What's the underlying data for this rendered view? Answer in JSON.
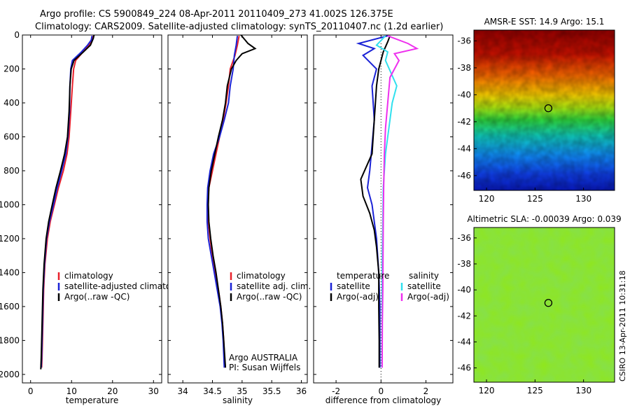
{
  "header": {
    "line1": "Argo profile: CS 5900849_224 08-Apr-2011 20110409_273 41.002S 126.375E",
    "line2": "Climatology: CARS2009. Satellite-adjusted climatology: synTS_20110407.nc (1.2d earlier)"
  },
  "side_label": "CSIRO 13-Apr-2011 10:31:18",
  "colors": {
    "climatology": "#e8202a",
    "satellite": "#1a22d6",
    "argo": "#000000",
    "sal_sat": "#30e0ee",
    "sal_argo": "#ee30ee"
  },
  "chart_data": [
    {
      "type": "line",
      "xlabel": "temperature",
      "xticks": [
        "0",
        "10",
        "20",
        "30"
      ],
      "xlim": [
        -2,
        32
      ],
      "ylim": [
        2050,
        0
      ],
      "yticks": [
        "0",
        "200",
        "400",
        "600",
        "800",
        "1000",
        "1200",
        "1400",
        "1600",
        "1800",
        "2000"
      ],
      "legend": {
        "placement": "bottom-right",
        "entries": [
          "climatology",
          "satellite-adjusted climatology",
          "Argo(..raw -QC)"
        ]
      },
      "series": [
        {
          "key": "climatology",
          "color": "#e8202a",
          "points": [
            [
              15.3,
              5
            ],
            [
              15.0,
              30
            ],
            [
              14.2,
              60
            ],
            [
              12.8,
              100
            ],
            [
              11.0,
              150
            ],
            [
              10.5,
              200
            ],
            [
              10.2,
              300
            ],
            [
              9.8,
              450
            ],
            [
              9.4,
              600
            ],
            [
              8.9,
              700
            ],
            [
              8.0,
              800
            ],
            [
              6.8,
              900
            ],
            [
              5.8,
              1000
            ],
            [
              4.8,
              1100
            ],
            [
              4.1,
              1200
            ],
            [
              3.5,
              1350
            ],
            [
              3.2,
              1500
            ],
            [
              3.0,
              1700
            ],
            [
              2.8,
              1900
            ],
            [
              2.7,
              1960
            ]
          ]
        },
        {
          "key": "satellite",
          "color": "#1a22d6",
          "points": [
            [
              15.0,
              5
            ],
            [
              14.8,
              30
            ],
            [
              13.9,
              60
            ],
            [
              12.4,
              100
            ],
            [
              10.2,
              150
            ],
            [
              9.8,
              200
            ],
            [
              9.6,
              300
            ],
            [
              9.5,
              450
            ],
            [
              9.1,
              600
            ],
            [
              8.6,
              700
            ],
            [
              7.6,
              800
            ],
            [
              6.5,
              900
            ],
            [
              5.6,
              1000
            ],
            [
              4.6,
              1100
            ],
            [
              3.9,
              1200
            ],
            [
              3.4,
              1350
            ],
            [
              3.1,
              1500
            ],
            [
              2.9,
              1700
            ],
            [
              2.7,
              1900
            ],
            [
              2.6,
              1960
            ]
          ]
        },
        {
          "key": "argo",
          "color": "#000000",
          "points": [
            [
              15.5,
              0
            ],
            [
              15.3,
              20
            ],
            [
              14.6,
              60
            ],
            [
              12.9,
              100
            ],
            [
              10.6,
              150
            ],
            [
              9.9,
              200
            ],
            [
              9.6,
              300
            ],
            [
              9.4,
              450
            ],
            [
              9.0,
              600
            ],
            [
              8.3,
              700
            ],
            [
              7.3,
              800
            ],
            [
              6.2,
              900
            ],
            [
              5.3,
              1000
            ],
            [
              4.4,
              1100
            ],
            [
              3.8,
              1200
            ],
            [
              3.3,
              1350
            ],
            [
              3.0,
              1500
            ],
            [
              2.8,
              1700
            ],
            [
              2.6,
              1900
            ],
            [
              2.5,
              1970
            ]
          ]
        }
      ]
    },
    {
      "type": "line",
      "xlabel": "salinity",
      "xticks": [
        "34",
        "34.5",
        "35",
        "35.5",
        "36"
      ],
      "xlim": [
        33.75,
        36.1
      ],
      "ylim": [
        2050,
        0
      ],
      "legend": {
        "placement": "bottom-right",
        "entries": [
          "climatology",
          "satellite adj. clim.",
          "Argo(..raw -QC)"
        ]
      },
      "annotation": [
        "Argo AUSTRALIA",
        "PI: Susan Wijffels"
      ],
      "series": [
        {
          "key": "climatology",
          "color": "#e8202a",
          "points": [
            [
              34.95,
              5
            ],
            [
              34.92,
              60
            ],
            [
              34.88,
              120
            ],
            [
              34.8,
              200
            ],
            [
              34.77,
              300
            ],
            [
              34.73,
              400
            ],
            [
              34.68,
              500
            ],
            [
              34.62,
              600
            ],
            [
              34.56,
              700
            ],
            [
              34.5,
              800
            ],
            [
              34.44,
              900
            ],
            [
              34.42,
              1000
            ],
            [
              34.43,
              1100
            ],
            [
              34.46,
              1200
            ],
            [
              34.5,
              1300
            ],
            [
              34.55,
              1400
            ],
            [
              34.6,
              1500
            ],
            [
              34.64,
              1600
            ],
            [
              34.67,
              1700
            ],
            [
              34.69,
              1800
            ],
            [
              34.71,
              1960
            ]
          ]
        },
        {
          "key": "satellite",
          "color": "#1a22d6",
          "points": [
            [
              34.92,
              5
            ],
            [
              34.9,
              60
            ],
            [
              34.87,
              120
            ],
            [
              34.85,
              200
            ],
            [
              34.8,
              300
            ],
            [
              34.77,
              400
            ],
            [
              34.7,
              500
            ],
            [
              34.62,
              600
            ],
            [
              34.52,
              700
            ],
            [
              34.46,
              800
            ],
            [
              34.42,
              900
            ],
            [
              34.41,
              1000
            ],
            [
              34.41,
              1100
            ],
            [
              34.43,
              1200
            ],
            [
              34.48,
              1300
            ],
            [
              34.53,
              1400
            ],
            [
              34.58,
              1500
            ],
            [
              34.63,
              1600
            ],
            [
              34.66,
              1700
            ],
            [
              34.68,
              1800
            ],
            [
              34.7,
              1960
            ]
          ]
        },
        {
          "key": "argo",
          "color": "#000000",
          "points": [
            [
              34.98,
              0
            ],
            [
              35.1,
              50
            ],
            [
              35.22,
              80
            ],
            [
              35.0,
              110
            ],
            [
              34.9,
              150
            ],
            [
              34.82,
              200
            ],
            [
              34.75,
              300
            ],
            [
              34.72,
              400
            ],
            [
              34.67,
              500
            ],
            [
              34.6,
              600
            ],
            [
              34.54,
              700
            ],
            [
              34.48,
              800
            ],
            [
              34.44,
              900
            ],
            [
              34.43,
              1000
            ],
            [
              34.44,
              1100
            ],
            [
              34.47,
              1200
            ],
            [
              34.51,
              1300
            ],
            [
              34.56,
              1400
            ],
            [
              34.6,
              1500
            ],
            [
              34.64,
              1600
            ],
            [
              34.67,
              1700
            ],
            [
              34.69,
              1800
            ],
            [
              34.72,
              1960
            ]
          ]
        }
      ]
    },
    {
      "type": "line",
      "xlabel": "difference from climatology",
      "xticks": [
        "-2",
        "0",
        "2"
      ],
      "xlim": [
        -3,
        3.2
      ],
      "ylim": [
        2050,
        0
      ],
      "legend": {
        "placement": "bottom",
        "groups": [
          {
            "title": "temperature",
            "entries": [
              "satellite",
              "Argo(-adj)"
            ]
          },
          {
            "title": "salinity",
            "entries": [
              "satellite",
              "Argo(-adj)"
            ]
          }
        ]
      },
      "series": [
        {
          "key": "temp_satellite",
          "color": "#1a22d6",
          "points": [
            [
              0.3,
              5
            ],
            [
              -1.0,
              50
            ],
            [
              -0.3,
              80
            ],
            [
              -0.8,
              120
            ],
            [
              -0.2,
              200
            ],
            [
              -0.4,
              300
            ],
            [
              -0.3,
              500
            ],
            [
              -0.4,
              650
            ],
            [
              -0.5,
              800
            ],
            [
              -0.6,
              900
            ],
            [
              -0.4,
              1000
            ],
            [
              -0.3,
              1100
            ],
            [
              -0.2,
              1200
            ],
            [
              -0.1,
              1400
            ],
            [
              -0.05,
              1600
            ],
            [
              -0.05,
              1800
            ],
            [
              -0.05,
              1960
            ]
          ]
        },
        {
          "key": "temp_argo",
          "color": "#000000",
          "points": [
            [
              0.4,
              5
            ],
            [
              0.3,
              40
            ],
            [
              0.1,
              100
            ],
            [
              -0.1,
              200
            ],
            [
              -0.2,
              300
            ],
            [
              -0.3,
              500
            ],
            [
              -0.4,
              700
            ],
            [
              -0.9,
              850
            ],
            [
              -0.8,
              950
            ],
            [
              -0.5,
              1050
            ],
            [
              -0.3,
              1150
            ],
            [
              -0.2,
              1250
            ],
            [
              -0.1,
              1400
            ],
            [
              -0.1,
              1600
            ],
            [
              -0.08,
              1800
            ],
            [
              -0.08,
              1960
            ]
          ]
        },
        {
          "key": "sal_satellite",
          "color": "#30e0ee",
          "points": [
            [
              0.2,
              5
            ],
            [
              -0.2,
              60
            ],
            [
              0.3,
              100
            ],
            [
              0.2,
              150
            ],
            [
              0.7,
              300
            ],
            [
              0.5,
              400
            ],
            [
              0.4,
              500
            ],
            [
              0.3,
              600
            ],
            [
              0.2,
              700
            ],
            [
              0.1,
              900
            ],
            [
              0.08,
              1100
            ],
            [
              0.06,
              1300
            ],
            [
              0.05,
              1500
            ],
            [
              0.05,
              1700
            ],
            [
              0.04,
              1960
            ]
          ]
        },
        {
          "key": "sal_argo",
          "color": "#ee30ee",
          "points": [
            [
              0.3,
              5
            ],
            [
              1.2,
              50
            ],
            [
              1.6,
              80
            ],
            [
              0.6,
              110
            ],
            [
              0.8,
              150
            ],
            [
              0.4,
              250
            ],
            [
              0.3,
              400
            ],
            [
              0.2,
              550
            ],
            [
              0.15,
              700
            ],
            [
              0.12,
              900
            ],
            [
              0.1,
              1100
            ],
            [
              0.09,
              1300
            ],
            [
              0.08,
              1500
            ],
            [
              0.06,
              1700
            ],
            [
              0.05,
              1960
            ]
          ]
        }
      ]
    },
    {
      "type": "heatmap",
      "title": "AMSR-E SST: 14.9 Argo: 15.1",
      "xticks": [
        "120",
        "125",
        "130"
      ],
      "yticks": [
        "-36",
        "-38",
        "-40",
        "-42",
        "-44",
        "-46"
      ],
      "xlim": [
        118.7,
        133.2
      ],
      "ylim": [
        -47.1,
        -35.2
      ],
      "marker": [
        126.375,
        -41.002
      ]
    },
    {
      "type": "heatmap",
      "title": "Altimetric SLA: -0.00039 Argo: 0.039",
      "xticks": [
        "120",
        "125",
        "130"
      ],
      "yticks": [
        "-36",
        "-38",
        "-40",
        "-42",
        "-44",
        "-46"
      ],
      "xlim": [
        118.7,
        133.2
      ],
      "ylim": [
        -47.1,
        -35.2
      ],
      "marker": [
        126.375,
        -41.002
      ]
    }
  ]
}
